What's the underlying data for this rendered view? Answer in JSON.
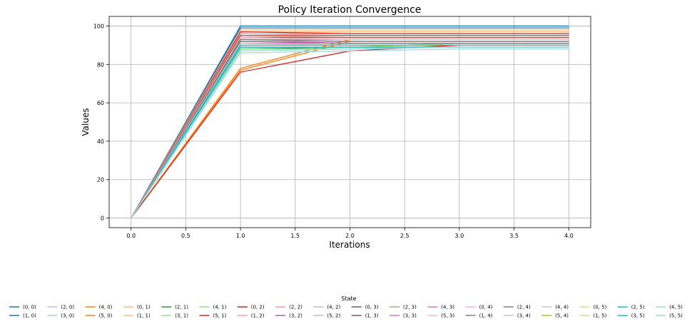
{
  "chart_data": {
    "type": "line",
    "title": "Policy Iteration Convergence",
    "xlabel": "Iterations",
    "ylabel": "Values",
    "x": [
      0.0,
      1.0,
      2.0,
      3.0,
      4.0
    ],
    "xlim": [
      -0.2,
      4.2
    ],
    "ylim": [
      -5,
      105
    ],
    "xticks": [
      "0.0",
      "0.5",
      "1.0",
      "1.5",
      "2.0",
      "2.5",
      "3.0",
      "3.5",
      "4.0"
    ],
    "yticks": [
      "0",
      "20",
      "40",
      "60",
      "80",
      "100"
    ],
    "grid": true,
    "legend": {
      "title": "State",
      "placement": "bottom-center",
      "columns": 18
    },
    "series": [
      {
        "name": "(0, 0)",
        "color": "#1f77b4",
        "values": [
          0,
          100,
          100,
          100,
          100
        ]
      },
      {
        "name": "(1, 0)",
        "color": "#1f77b4",
        "values": [
          0,
          99,
          99,
          99,
          99
        ]
      },
      {
        "name": "(2, 0)",
        "color": "#aec7e8",
        "values": [
          0,
          97,
          97,
          97,
          97
        ]
      },
      {
        "name": "(3, 0)",
        "color": "#aec7e8",
        "values": [
          0,
          96,
          96,
          96,
          96
        ]
      },
      {
        "name": "(4, 0)",
        "color": "#ff7f0e",
        "values": [
          0,
          78,
          93,
          93,
          93
        ]
      },
      {
        "name": "(5, 0)",
        "color": "#ff7f0e",
        "values": [
          0,
          77,
          92,
          92,
          92
        ]
      },
      {
        "name": "(0, 1)",
        "color": "#ffbb78",
        "values": [
          0,
          98,
          98,
          98,
          98
        ]
      },
      {
        "name": "(1, 1)",
        "color": "#ffbb78",
        "values": [
          0,
          97,
          97,
          97,
          97
        ]
      },
      {
        "name": "(2, 1)",
        "color": "#2ca02c",
        "values": [
          0,
          88,
          89,
          91,
          91
        ]
      },
      {
        "name": "(3, 1)",
        "color": "#98df8a",
        "values": [
          0,
          88,
          88,
          90,
          90
        ]
      },
      {
        "name": "(4, 1)",
        "color": "#98df8a",
        "values": [
          0,
          89,
          89,
          91,
          91
        ]
      },
      {
        "name": "(5, 1)",
        "color": "#d62728",
        "values": [
          0,
          76,
          87,
          90,
          90
        ]
      },
      {
        "name": "(0, 2)",
        "color": "#d62728",
        "values": [
          0,
          97,
          96,
          96,
          96
        ]
      },
      {
        "name": "(1, 2)",
        "color": "#ff9896",
        "values": [
          0,
          96,
          95,
          95,
          95
        ]
      },
      {
        "name": "(2, 2)",
        "color": "#ff9896",
        "values": [
          0,
          95,
          94,
          94,
          94
        ]
      },
      {
        "name": "(3, 2)",
        "color": "#9467bd",
        "values": [
          0,
          92,
          91,
          91,
          91
        ]
      },
      {
        "name": "(4, 2)",
        "color": "#c5b0d5",
        "values": [
          0,
          93,
          92,
          92,
          92
        ]
      },
      {
        "name": "(5, 2)",
        "color": "#c5b0d5",
        "values": [
          0,
          91,
          90,
          90,
          90
        ]
      },
      {
        "name": "(0, 3)",
        "color": "#8c564b",
        "values": [
          0,
          95,
          95,
          95,
          95
        ]
      },
      {
        "name": "(1, 3)",
        "color": "#8c564b",
        "values": [
          0,
          94,
          94,
          94,
          94
        ]
      },
      {
        "name": "(2, 3)",
        "color": "#c49c94",
        "values": [
          0,
          93,
          93,
          93,
          93
        ]
      },
      {
        "name": "(3, 3)",
        "color": "#e377c2",
        "values": [
          0,
          92,
          92,
          92,
          92
        ]
      },
      {
        "name": "(4, 3)",
        "color": "#e377c2",
        "values": [
          0,
          91,
          91,
          91,
          91
        ]
      },
      {
        "name": "(5, 3)",
        "color": "#f7b6d2",
        "values": [
          0,
          90,
          90,
          90,
          90
        ]
      },
      {
        "name": "(0, 4)",
        "color": "#f7b6d2",
        "values": [
          0,
          94,
          93,
          93,
          93
        ]
      },
      {
        "name": "(1, 4)",
        "color": "#7f7f7f",
        "values": [
          0,
          93,
          92,
          92,
          92
        ]
      },
      {
        "name": "(2, 4)",
        "color": "#7f7f7f",
        "values": [
          0,
          92,
          91,
          91,
          91
        ]
      },
      {
        "name": "(3, 4)",
        "color": "#c7c7c7",
        "values": [
          0,
          91,
          90,
          90,
          90
        ]
      },
      {
        "name": "(4, 4)",
        "color": "#c7c7c7",
        "values": [
          0,
          0,
          0,
          0,
          0
        ]
      },
      {
        "name": "(5, 4)",
        "color": "#bcbd22",
        "values": [
          0,
          89,
          89,
          89,
          89
        ]
      },
      {
        "name": "(0, 5)",
        "color": "#dbdb8d",
        "values": [
          0,
          90,
          90,
          90,
          90
        ]
      },
      {
        "name": "(1, 5)",
        "color": "#dbdb8d",
        "values": [
          0,
          89,
          89,
          89,
          89
        ]
      },
      {
        "name": "(2, 5)",
        "color": "#17becf",
        "values": [
          0,
          90,
          90,
          90,
          90
        ]
      },
      {
        "name": "(3, 5)",
        "color": "#17becf",
        "values": [
          0,
          89,
          89,
          89,
          89
        ]
      },
      {
        "name": "(4, 5)",
        "color": "#9edae5",
        "values": [
          0,
          87,
          88,
          89,
          89
        ]
      },
      {
        "name": "(5, 5)",
        "color": "#9edae5",
        "values": [
          0,
          86,
          87,
          88,
          88
        ]
      }
    ]
  }
}
